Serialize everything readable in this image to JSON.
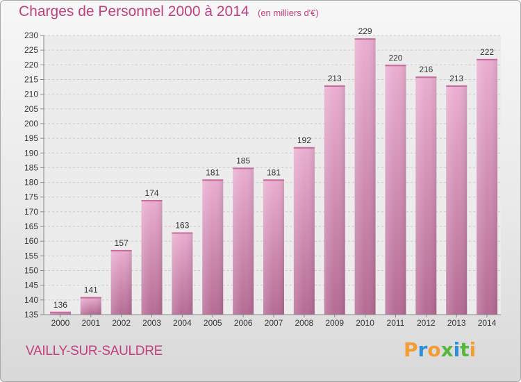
{
  "header": {
    "title": "Charges de Personnel 2000 à 2014",
    "subtitle": "(en milliers d'€)"
  },
  "footer": {
    "commune": "VAILLY-SUR-SAULDRE",
    "logo": "Proxiti"
  },
  "colors": {
    "accent": "#c2407f",
    "bar_top": "#eaaed0",
    "bar_bottom": "#b56b94",
    "logo_letters": [
      "#f39c34",
      "#2f8fd6",
      "#f39c34",
      "#58b83c",
      "#2f8fd6",
      "#58b83c",
      "#f39c34"
    ]
  },
  "chart_data": {
    "type": "bar",
    "title": "Charges de Personnel 2000 à 2014",
    "subtitle": "(en milliers d'€)",
    "xlabel": "",
    "ylabel": "",
    "categories": [
      "2000",
      "2001",
      "2002",
      "2003",
      "2004",
      "2005",
      "2006",
      "2007",
      "2008",
      "2009",
      "2010",
      "2011",
      "2012",
      "2013",
      "2014"
    ],
    "values": [
      136,
      141,
      157,
      174,
      163,
      181,
      185,
      181,
      192,
      213,
      229,
      220,
      216,
      213,
      222
    ],
    "ylim": [
      135,
      230
    ],
    "yticks": [
      "135",
      "140",
      "145",
      "150",
      "155",
      "160",
      "165",
      "170",
      "175",
      "180",
      "185",
      "190",
      "195",
      "200",
      "205",
      "210",
      "215",
      "220",
      "225",
      "230"
    ],
    "grid": true,
    "legend": "none"
  }
}
